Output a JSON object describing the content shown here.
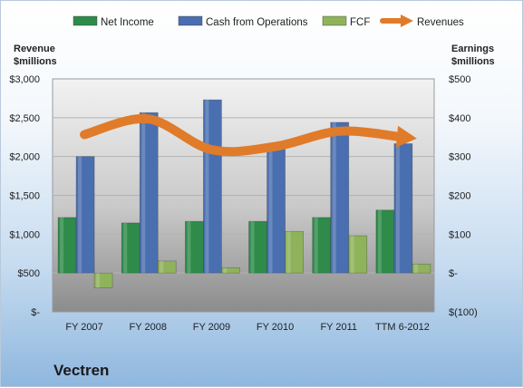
{
  "chart_data": {
    "type": "bar",
    "title": "Vectren",
    "categories": [
      "FY 2007",
      "FY 2008",
      "FY 2009",
      "FY 2010",
      "FY 2011",
      "TTM 6-2012"
    ],
    "left_axis": {
      "label_line1": "Revenue",
      "label_line2": "$millions",
      "ylim": [
        0,
        3000
      ],
      "ticks": [
        0,
        500,
        1000,
        1500,
        2000,
        2500,
        3000
      ],
      "tick_labels": [
        "$-",
        "$500",
        "$1,000",
        "$1,500",
        "$2,000",
        "$2,500",
        "$3,000"
      ]
    },
    "right_axis": {
      "label_line1": "Earnings",
      "label_line2": "$millions",
      "ylim": [
        -100,
        500
      ],
      "ticks": [
        -100,
        0,
        100,
        200,
        300,
        400,
        500
      ],
      "tick_labels": [
        "$(100)",
        "$-",
        "$100",
        "$200",
        "$300",
        "$400",
        "$500"
      ]
    },
    "series": [
      {
        "name": "Net Income",
        "axis": "right",
        "kind": "bar",
        "color": "#2e8b4a",
        "values": [
          143,
          129,
          133,
          133,
          143,
          162
        ]
      },
      {
        "name": "Cash from Operations",
        "axis": "right",
        "kind": "bar",
        "color": "#4a6fb0",
        "values": [
          300,
          413,
          446,
          332,
          388,
          333
        ]
      },
      {
        "name": "FCF",
        "axis": "right",
        "kind": "bar",
        "color": "#8fb35a",
        "values": [
          -38,
          31,
          13,
          107,
          96,
          23
        ]
      },
      {
        "name": "Revenues",
        "axis": "left",
        "kind": "line",
        "color": "#e07b2a",
        "values": [
          2282,
          2484,
          2088,
          2129,
          2325,
          2250
        ]
      }
    ],
    "legend_position": "top",
    "plot_background": "#c8c8c8"
  }
}
